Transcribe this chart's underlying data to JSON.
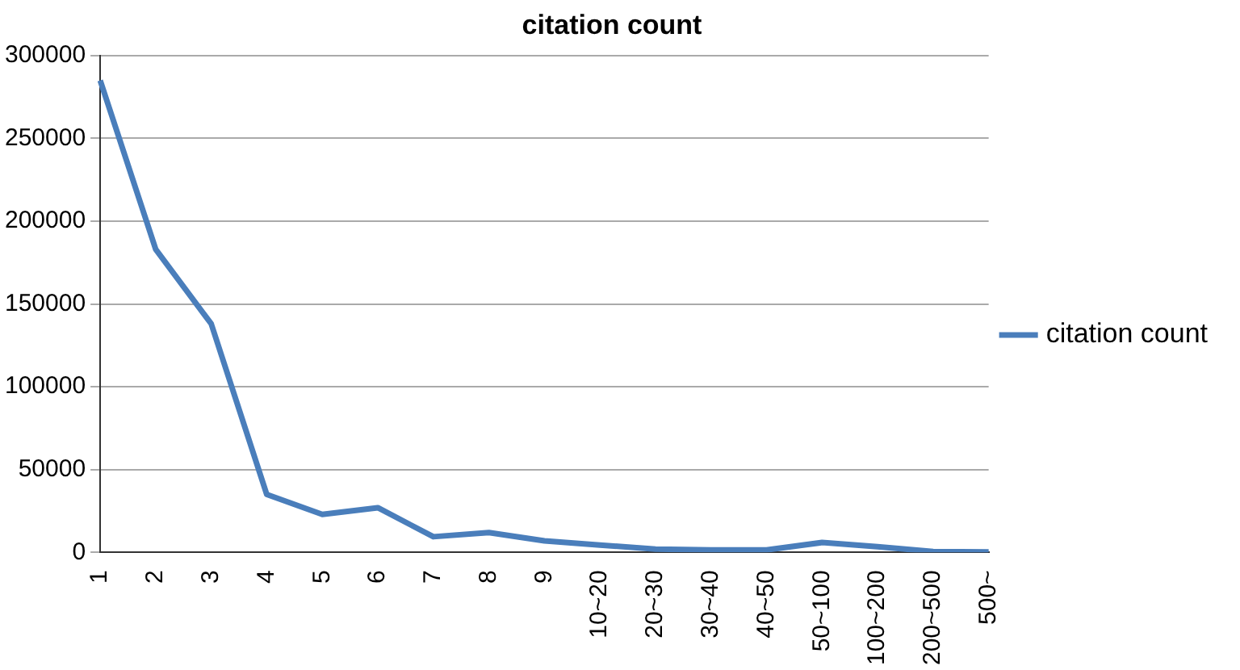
{
  "chart_data": {
    "type": "line",
    "title": "citation count",
    "categories": [
      "1",
      "2",
      "3",
      "4",
      "5",
      "6",
      "7",
      "8",
      "9",
      "10~20",
      "20~30",
      "30~40",
      "40~50",
      "50~100",
      "100~200",
      "200~500",
      "500~"
    ],
    "series": [
      {
        "name": "citation count",
        "color": "#4a7ebb",
        "values": [
          285000,
          183000,
          138000,
          35000,
          23000,
          27000,
          9500,
          12000,
          7000,
          4500,
          2000,
          1500,
          1500,
          6000,
          3500,
          500,
          300
        ]
      }
    ],
    "ylim": [
      0,
      300000
    ],
    "yticks": [
      0,
      50000,
      100000,
      150000,
      200000,
      250000,
      300000
    ],
    "grid": "y",
    "legend": "right",
    "marker": "none"
  }
}
